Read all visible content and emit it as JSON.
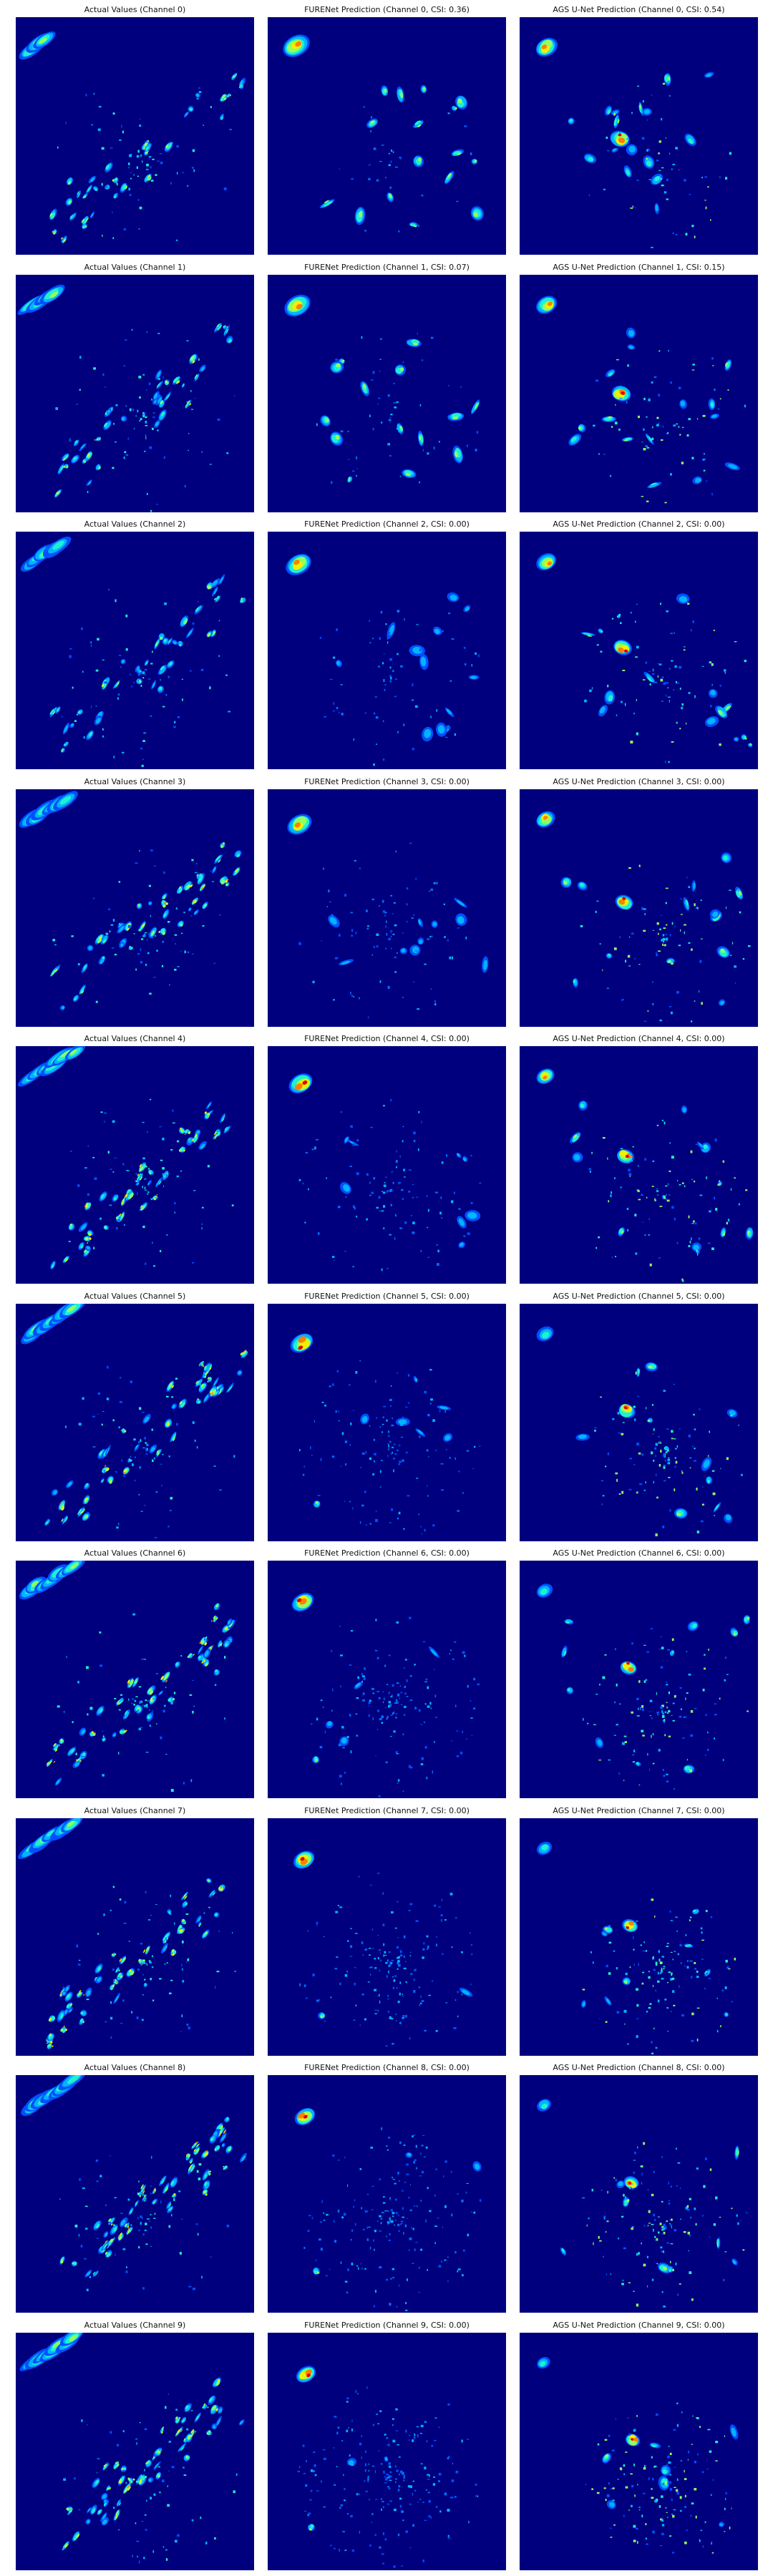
{
  "colors": {
    "background": "#00007f",
    "colormap": "jet"
  },
  "rows": [
    {
      "actual_title": "Actual Values (Channel 0)",
      "furenet_title": "FURENet Prediction (Channel 0, CSI: 0.36)",
      "ags_title": "AGS U-Net Prediction (Channel 0, CSI: 0.54)"
    },
    {
      "actual_title": "Actual Values (Channel 1)",
      "furenet_title": "FURENet Prediction (Channel 1, CSI: 0.07)",
      "ags_title": "AGS U-Net Prediction (Channel 1, CSI: 0.15)"
    },
    {
      "actual_title": "Actual Values (Channel 2)",
      "furenet_title": "FURENet Prediction (Channel 2, CSI: 0.00)",
      "ags_title": "AGS U-Net Prediction (Channel 2, CSI: 0.00)"
    },
    {
      "actual_title": "Actual Values (Channel 3)",
      "furenet_title": "FURENet Prediction (Channel 3, CSI: 0.00)",
      "ags_title": "AGS U-Net Prediction (Channel 3, CSI: 0.00)"
    },
    {
      "actual_title": "Actual Values (Channel 4)",
      "furenet_title": "FURENet Prediction (Channel 4, CSI: 0.00)",
      "ags_title": "AGS U-Net Prediction (Channel 4, CSI: 0.00)"
    },
    {
      "actual_title": "Actual Values (Channel 5)",
      "furenet_title": "FURENet Prediction (Channel 5, CSI: 0.00)",
      "ags_title": "AGS U-Net Prediction (Channel 5, CSI: 0.00)"
    },
    {
      "actual_title": "Actual Values (Channel 6)",
      "furenet_title": "FURENet Prediction (Channel 6, CSI: 0.00)",
      "ags_title": "AGS U-Net Prediction (Channel 6, CSI: 0.00)"
    },
    {
      "actual_title": "Actual Values (Channel 7)",
      "furenet_title": "FURENet Prediction (Channel 7, CSI: 0.00)",
      "ags_title": "AGS U-Net Prediction (Channel 7, CSI: 0.00)"
    },
    {
      "actual_title": "Actual Values (Channel 8)",
      "furenet_title": "FURENet Prediction (Channel 8, CSI: 0.00)",
      "ags_title": "AGS U-Net Prediction (Channel 8, CSI: 0.00)"
    },
    {
      "actual_title": "Actual Values (Channel 9)",
      "furenet_title": "FURENet Prediction (Channel 9, CSI: 0.00)",
      "ags_title": "AGS U-Net Prediction (Channel 9, CSI: 0.00)"
    }
  ]
}
